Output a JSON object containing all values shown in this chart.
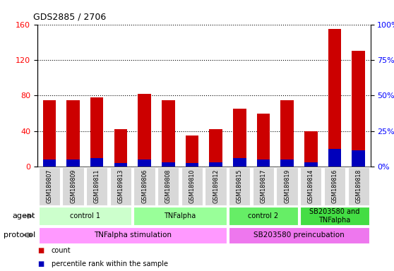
{
  "title": "GDS2885 / 2706",
  "samples": [
    "GSM189807",
    "GSM189809",
    "GSM189811",
    "GSM189813",
    "GSM189806",
    "GSM189808",
    "GSM189810",
    "GSM189812",
    "GSM189815",
    "GSM189817",
    "GSM189819",
    "GSM189814",
    "GSM189816",
    "GSM189818"
  ],
  "red_values": [
    75,
    75,
    78,
    42,
    82,
    75,
    35,
    42,
    65,
    60,
    75,
    40,
    155,
    130
  ],
  "blue_values": [
    8,
    8,
    10,
    4,
    8,
    5,
    4,
    5,
    10,
    8,
    8,
    5,
    20,
    18
  ],
  "ylim_left": [
    0,
    160
  ],
  "ylim_right": [
    0,
    100
  ],
  "yticks_left": [
    0,
    40,
    80,
    120,
    160
  ],
  "yticks_right": [
    0,
    25,
    50,
    75,
    100
  ],
  "yticklabels_right": [
    "0%",
    "25%",
    "50%",
    "75%",
    "100%"
  ],
  "agent_groups": [
    {
      "label": "control 1",
      "start": 0,
      "end": 3,
      "color": "#ccffcc"
    },
    {
      "label": "TNFalpha",
      "start": 4,
      "end": 7,
      "color": "#99ff99"
    },
    {
      "label": "control 2",
      "start": 8,
      "end": 10,
      "color": "#66ee66"
    },
    {
      "label": "SB203580 and\nTNFalpha",
      "start": 11,
      "end": 13,
      "color": "#44dd44"
    }
  ],
  "protocol_groups": [
    {
      "label": "TNFalpha stimulation",
      "start": 0,
      "end": 7,
      "color": "#ff99ff"
    },
    {
      "label": "SB203580 preincubation",
      "start": 8,
      "end": 13,
      "color": "#ee77ee"
    }
  ],
  "bar_width": 0.55,
  "red_color": "#cc0000",
  "blue_color": "#0000bb",
  "bg_color": "#ffffff"
}
